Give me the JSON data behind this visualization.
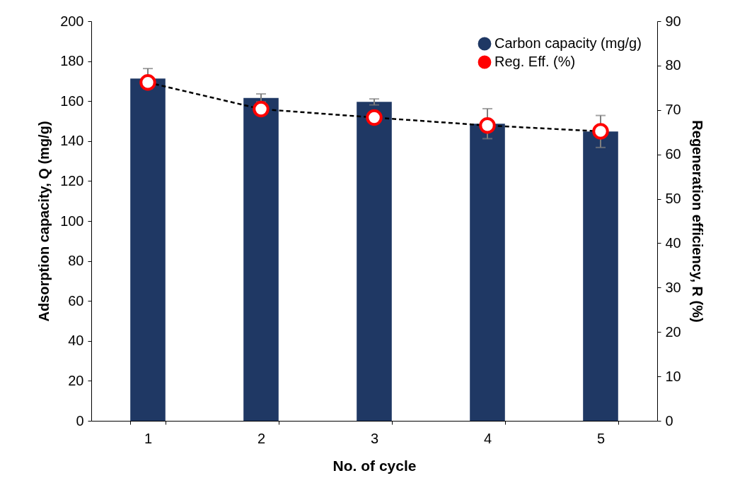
{
  "chart_data": {
    "type": "bar",
    "xlabel": "No. of cycle",
    "ylabel": "Adsorption capacity, Q (mg/g)",
    "y2label": "Regeneration efficiency, R (%)",
    "categories": [
      "1",
      "2",
      "3",
      "4",
      "5"
    ],
    "series": [
      {
        "name": "Carbon capacity (mg/g)",
        "color": "#1f3864",
        "values": [
          171.3,
          161.6,
          159.6,
          148.7,
          144.8
        ],
        "errors": [
          5,
          2,
          1.5,
          7.5,
          8
        ]
      },
      {
        "name": "Reg. Eff. (%)",
        "type": "line",
        "axis": "y2",
        "color": "#ff0000",
        "values": [
          76.2,
          70.2,
          68.3,
          66.5,
          65.2
        ],
        "marker": "circle",
        "line_style": "dashed"
      }
    ],
    "ylim": [
      0,
      200
    ],
    "yticks": [
      0,
      20,
      40,
      60,
      80,
      100,
      120,
      140,
      160,
      180,
      200
    ],
    "y2lim": [
      0,
      90
    ],
    "y2ticks": [
      0,
      10,
      20,
      30,
      40,
      50,
      60,
      70,
      80,
      90
    ],
    "grid": false,
    "legend": "top right"
  }
}
